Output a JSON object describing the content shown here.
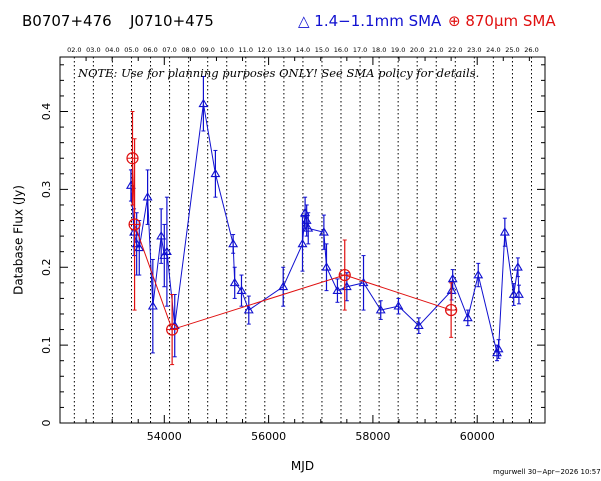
{
  "header": {
    "source_1": "B0707+476",
    "source_2": "J0710+475",
    "legend_1": "△ 1.4−1.1mm SMA",
    "legend_2": "⊕ 870μm SMA"
  },
  "note": "NOTE: Use for planning purposes ONLY!  See SMA policy for details.",
  "footer": "mgurwell 30−Apr−2026 10:57",
  "colors": {
    "series_1": "#1010d0",
    "series_2": "#e01010",
    "axis": "#000000"
  },
  "chart_data": {
    "type": "scatter",
    "xlabel": "MJD",
    "ylabel": "Database Flux (Jy)",
    "xlim": [
      52000,
      61300
    ],
    "ylim": [
      0,
      0.47
    ],
    "x_ticks": [
      54000,
      56000,
      58000,
      60000
    ],
    "x_tick_labels": [
      "54000",
      "56000",
      "58000",
      "60000"
    ],
    "y_ticks": [
      0,
      0.1,
      0.2,
      0.3,
      0.4
    ],
    "y_tick_labels": [
      "0",
      "0.1",
      "0.2",
      "0.3",
      "0.4"
    ],
    "top_axis": {
      "labels": [
        "02.0",
        "03.0",
        "04.0",
        "05.0",
        "06.0",
        "07.0",
        "08.0",
        "09.0",
        "10.0",
        "11.0",
        "12.0",
        "13.0",
        "14.0",
        "15.0",
        "16.0",
        "17.0",
        "18.0",
        "19.0",
        "20.0",
        "21.0",
        "22.0",
        "23.0",
        "24.0",
        "25.0",
        "26.0"
      ],
      "mjd": [
        52275,
        52640,
        53005,
        53371,
        53736,
        54101,
        54466,
        54832,
        55197,
        55562,
        55927,
        56293,
        56658,
        57023,
        57388,
        57754,
        58119,
        58484,
        58849,
        59215,
        59580,
        59945,
        60310,
        60676,
        61041
      ]
    },
    "series": [
      {
        "name": "1.4−1.1mm SMA",
        "marker": "triangle",
        "points": [
          [
            53360,
            0.305,
            0.02
          ],
          [
            53420,
            0.245,
            0.03
          ],
          [
            53470,
            0.23,
            0.04
          ],
          [
            53520,
            0.225,
            0.035
          ],
          [
            53680,
            0.29,
            0.035
          ],
          [
            53780,
            0.15,
            0.06
          ],
          [
            53940,
            0.24,
            0.035
          ],
          [
            54000,
            0.215,
            0.04
          ],
          [
            54050,
            0.22,
            0.07
          ],
          [
            54200,
            0.125,
            0.04
          ],
          [
            54750,
            0.41,
            0.035
          ],
          [
            54980,
            0.32,
            0.03
          ],
          [
            55320,
            0.23,
            0.012
          ],
          [
            55350,
            0.18,
            0.02
          ],
          [
            55480,
            0.17,
            0.02
          ],
          [
            55620,
            0.145,
            0.018
          ],
          [
            56280,
            0.175,
            0.025
          ],
          [
            56650,
            0.23,
            0.035
          ],
          [
            56700,
            0.27,
            0.02
          ],
          [
            56730,
            0.26,
            0.02
          ],
          [
            56760,
            0.25,
            0.02
          ],
          [
            57060,
            0.245,
            0.022
          ],
          [
            57110,
            0.2,
            0.03
          ],
          [
            57320,
            0.17,
            0.015
          ],
          [
            57500,
            0.175,
            0.018
          ],
          [
            57820,
            0.18,
            0.035
          ],
          [
            58150,
            0.145,
            0.012
          ],
          [
            58490,
            0.15,
            0.01
          ],
          [
            58880,
            0.125,
            0.01
          ],
          [
            59510,
            0.17,
            0.012
          ],
          [
            59530,
            0.185,
            0.012
          ],
          [
            59820,
            0.135,
            0.01
          ],
          [
            60020,
            0.19,
            0.015
          ],
          [
            60380,
            0.09,
            0.01
          ],
          [
            60410,
            0.095,
            0.012
          ],
          [
            60530,
            0.245,
            0.018
          ],
          [
            60700,
            0.165,
            0.014
          ],
          [
            60780,
            0.2,
            0.012
          ],
          [
            60800,
            0.165,
            0.012
          ]
        ]
      },
      {
        "name": "870μm SMA",
        "marker": "circle-plus",
        "points": [
          [
            53390,
            0.34,
            0.06
          ],
          [
            53430,
            0.255,
            0.11
          ],
          [
            54150,
            0.12,
            0.045
          ],
          [
            57460,
            0.19,
            0.045
          ],
          [
            59500,
            0.145,
            0.035
          ]
        ]
      }
    ]
  }
}
